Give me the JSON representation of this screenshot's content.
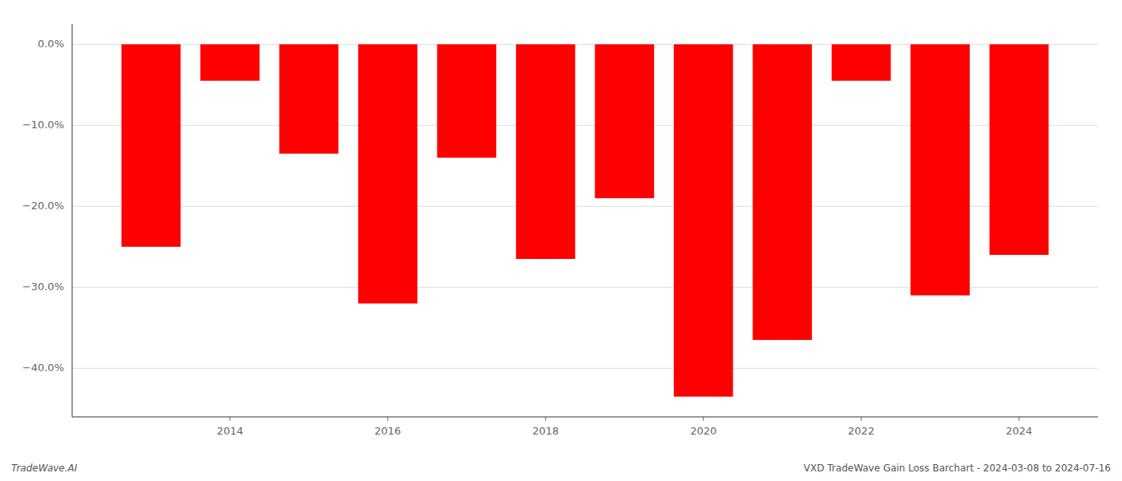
{
  "chart_data": {
    "type": "bar",
    "x": [
      2013,
      2014,
      2015,
      2016,
      2017,
      2018,
      2019,
      2020,
      2021,
      2022,
      2023,
      2024
    ],
    "values": [
      -25.0,
      -4.5,
      -13.5,
      -32.0,
      -14.0,
      -26.5,
      -19.0,
      -43.5,
      -36.5,
      -4.5,
      -31.0,
      -26.0
    ],
    "color": "#ff0000",
    "xlim": [
      2012,
      2025
    ],
    "xticks": [
      2014,
      2016,
      2018,
      2020,
      2022,
      2024
    ],
    "ylim": [
      -46,
      2.5
    ],
    "yticks": [
      {
        "value": 0,
        "label": "0.0%"
      },
      {
        "value": -10,
        "label": "−10.0%"
      },
      {
        "value": -20,
        "label": "−20.0%"
      },
      {
        "value": -30,
        "label": "−30.0%"
      },
      {
        "value": -40,
        "label": "−40.0%"
      }
    ],
    "grid": true,
    "annotations": [
      "TradeWave.AI",
      "VXD TradeWave Gain Loss Barchart - 2024-03-08 to 2024-07-16"
    ]
  }
}
